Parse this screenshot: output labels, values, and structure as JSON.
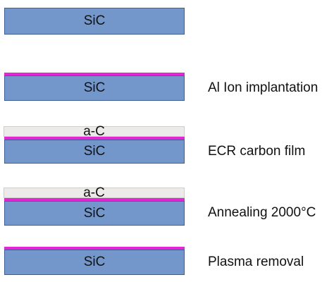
{
  "colors": {
    "sic": "#7397cb",
    "sic_border": "#3d5f93",
    "implant_layer": "#e327d6",
    "carbon_film": "#ecebe9"
  },
  "stages": [
    {
      "substrate_label": "SiC"
    },
    {
      "substrate_label": "SiC",
      "step_label": "Al Ion implantation"
    },
    {
      "substrate_label": "SiC",
      "film_label": "a-C",
      "step_label": "ECR carbon film"
    },
    {
      "substrate_label": "SiC",
      "film_label": "a-C",
      "step_label": "Annealing 2000°C"
    },
    {
      "substrate_label": "SiC",
      "step_label": "Plasma removal"
    }
  ]
}
